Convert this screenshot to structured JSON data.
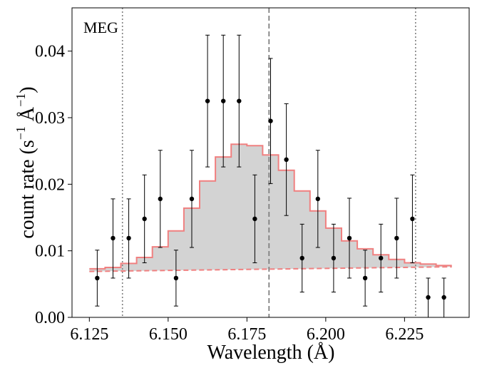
{
  "chart_data": {
    "type": "line",
    "annotation": "MEG",
    "xlabel": "Wavelength (Å)",
    "ylabel_text": "count rate (s",
    "ylabel_sup1": "−1",
    "ylabel_unit": " Å",
    "ylabel_sup2": "−1",
    "ylabel_close": ")",
    "xlim": [
      6.1195,
      6.2455
    ],
    "ylim": [
      0.0,
      0.0465
    ],
    "xticks": [
      6.125,
      6.15,
      6.175,
      6.2,
      6.225
    ],
    "xtick_labels": [
      "6.125",
      "6.150",
      "6.175",
      "6.200",
      "6.225"
    ],
    "yticks": [
      0.0,
      0.01,
      0.02,
      0.03,
      0.04
    ],
    "ytick_labels": [
      "0.00",
      "0.01",
      "0.02",
      "0.03",
      "0.04"
    ],
    "vlines": [
      {
        "x": 6.1355,
        "style": "dotted",
        "color": "#808080"
      },
      {
        "x": 6.182,
        "style": "dashed",
        "color": "#808080"
      },
      {
        "x": 6.2285,
        "style": "dotted",
        "color": "#808080"
      }
    ],
    "model_bins": {
      "name": "model",
      "color": "#f08080",
      "fill": "#d3d3d3",
      "edges": [
        6.125,
        6.13,
        6.135,
        6.14,
        6.145,
        6.15,
        6.155,
        6.16,
        6.165,
        6.17,
        6.175,
        6.18,
        6.185,
        6.19,
        6.195,
        6.2,
        6.205,
        6.21,
        6.215,
        6.22,
        6.225,
        6.23,
        6.235,
        6.24
      ],
      "values": [
        0.0073,
        0.0075,
        0.0081,
        0.009,
        0.0106,
        0.013,
        0.0164,
        0.0205,
        0.0241,
        0.026,
        0.0258,
        0.0244,
        0.0221,
        0.019,
        0.016,
        0.0134,
        0.0115,
        0.0103,
        0.0094,
        0.0087,
        0.0082,
        0.008,
        0.0078
      ]
    },
    "continuum": {
      "name": "continuum",
      "color": "#f08080",
      "style": "dashed",
      "x": [
        6.125,
        6.24
      ],
      "y": [
        0.0069,
        0.0076
      ]
    },
    "points": {
      "name": "data",
      "color": "#000000",
      "x": [
        6.1275,
        6.1325,
        6.1375,
        6.1425,
        6.1475,
        6.1525,
        6.1575,
        6.1625,
        6.1675,
        6.1725,
        6.1775,
        6.1825,
        6.1875,
        6.1925,
        6.1975,
        6.2025,
        6.2075,
        6.2125,
        6.2175,
        6.2225,
        6.2275,
        6.2325,
        6.2375
      ],
      "y": [
        0.0059,
        0.0119,
        0.0119,
        0.0148,
        0.0178,
        0.0059,
        0.0178,
        0.0325,
        0.0325,
        0.0325,
        0.0148,
        0.0295,
        0.0237,
        0.0089,
        0.0178,
        0.0089,
        0.0119,
        0.0059,
        0.0089,
        0.0119,
        0.0148,
        0.003,
        0.003
      ],
      "yerr_low": [
        0.0042,
        0.006,
        0.006,
        0.0066,
        0.0073,
        0.0042,
        0.0073,
        0.0099,
        0.0099,
        0.0099,
        0.0066,
        0.0094,
        0.0084,
        0.0051,
        0.0073,
        0.0051,
        0.006,
        0.0042,
        0.0051,
        0.006,
        0.0066,
        0.003,
        0.003
      ],
      "yerr_high": [
        0.0042,
        0.0059,
        0.0059,
        0.0066,
        0.0073,
        0.0042,
        0.0073,
        0.0099,
        0.0099,
        0.0099,
        0.0066,
        0.0094,
        0.0084,
        0.0051,
        0.0073,
        0.0051,
        0.006,
        0.0042,
        0.0051,
        0.006,
        0.0066,
        0.0029,
        0.0029
      ]
    }
  }
}
